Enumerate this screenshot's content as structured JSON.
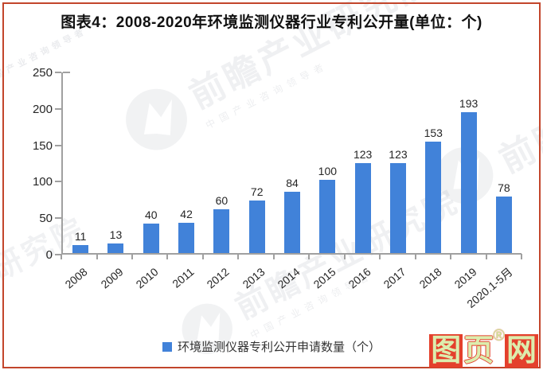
{
  "header": {
    "title": "图表4：2008-2020年环境监测仪器行业专利公开量(单位：个)"
  },
  "chart_data": {
    "type": "bar",
    "title": "图表4：2008-2020年环境监测仪器行业专利公开量(单位：个)",
    "categories": [
      "2008",
      "2009",
      "2010",
      "2011",
      "2012",
      "2013",
      "2014",
      "2015",
      "2016",
      "2017",
      "2018",
      "2019",
      "2020.1-5月"
    ],
    "values": [
      11,
      13,
      40,
      42,
      60,
      72,
      84,
      100,
      123,
      123,
      153,
      193,
      78
    ],
    "series_name": "环境监测仪器专利公开申请数量（个）",
    "unit": "个",
    "ylim": [
      0,
      250
    ],
    "yticks": [
      0,
      50,
      100,
      150,
      200,
      250
    ],
    "bar_color": "#4182d9",
    "grid": false,
    "legend_position": "bottom",
    "value_labels": "above bars",
    "x_tick_label_rotation": -40
  },
  "legend": {
    "label": "环境监测仪器专利公开申请数量（个）",
    "swatch_color": "#4182d9"
  },
  "watermark": {
    "text": "前瞻产业研究院",
    "subtext": "中国产业咨询领导者",
    "fragment_bottom_left": "研究院",
    "logo": "qianzhan-circle-logo"
  },
  "footer_logo": {
    "chars": [
      "图",
      "页",
      "网"
    ],
    "registered_mark": "®",
    "color": "#e4402c"
  },
  "frame": {
    "border_color": "#c2452b"
  }
}
